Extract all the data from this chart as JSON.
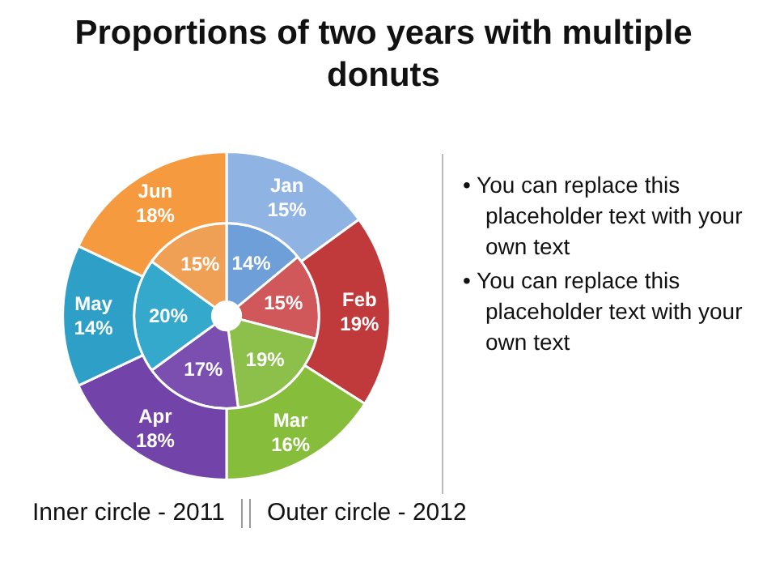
{
  "chart_data": {
    "type": "donut",
    "title": "Proportions of two years with multiple donuts",
    "categories": [
      "Jan",
      "Feb",
      "Mar",
      "Apr",
      "May",
      "Jun"
    ],
    "series": [
      {
        "values": [
          14,
          15,
          19,
          17,
          20,
          15
        ],
        "value_labels": [
          "14%",
          "15%",
          "19%",
          "17%",
          "20%",
          "15%"
        ],
        "colors": [
          "#6f9fd8",
          "#d0575a",
          "#8cc04a",
          "#7a4fb0",
          "#35a9cc",
          "#f0a055"
        ]
      },
      {
        "values": [
          15,
          19,
          16,
          18,
          14,
          18
        ],
        "value_labels": [
          "15%",
          "19%",
          "16%",
          "18%",
          "14%",
          "18%"
        ],
        "colors": [
          "#8fb4e3",
          "#c0393b",
          "#86bd3a",
          "#7243a8",
          "#2ea0c8",
          "#f59a3e"
        ]
      }
    ],
    "annotations": [
      "• You can replace this placeholder text with your own text",
      "• You can replace this placeholder text with your own text",
      "Inner circle - 2011",
      "Outer circle - 2012"
    ]
  }
}
